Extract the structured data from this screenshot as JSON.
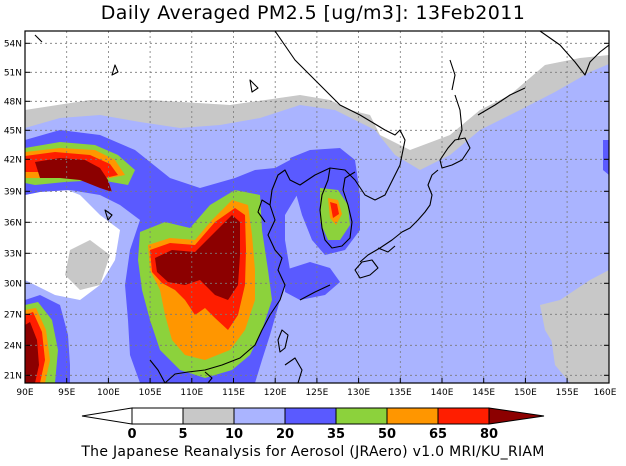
{
  "title": "Daily Averaged PM2.5 [ug/m3]: 13Feb2011",
  "footer": "The Japanese Reanalysis for Aerosol (JRAero) v1.0 MRI/KU_RIAM",
  "lat_labels": [
    "54N",
    "51N",
    "48N",
    "45N",
    "42N",
    "39N",
    "36N",
    "33N",
    "30N",
    "27N",
    "24N",
    "21N"
  ],
  "lon_labels": [
    "90E",
    "95E",
    "100E",
    "105E",
    "110E",
    "115E",
    "120E",
    "125E",
    "130E",
    "135E",
    "140E",
    "145E",
    "150E",
    "155E",
    "160E"
  ],
  "colorbar": {
    "labels": [
      "0",
      "5",
      "10",
      "20",
      "35",
      "50",
      "65",
      "80"
    ],
    "colors": [
      "#ffffff",
      "#ffffff",
      "#c8c8c8",
      "#aab4ff",
      "#5a5aff",
      "#8cd23c",
      "#ff9600",
      "#ff1e00",
      "#8c0000"
    ]
  },
  "palette": {
    "c5": "#c8c8c8",
    "c10": "#aab4ff",
    "c20": "#5a5aff",
    "c35": "#8cd23c",
    "c50": "#ff9600",
    "c65": "#ff1e00",
    "c80": "#8c0000"
  }
}
